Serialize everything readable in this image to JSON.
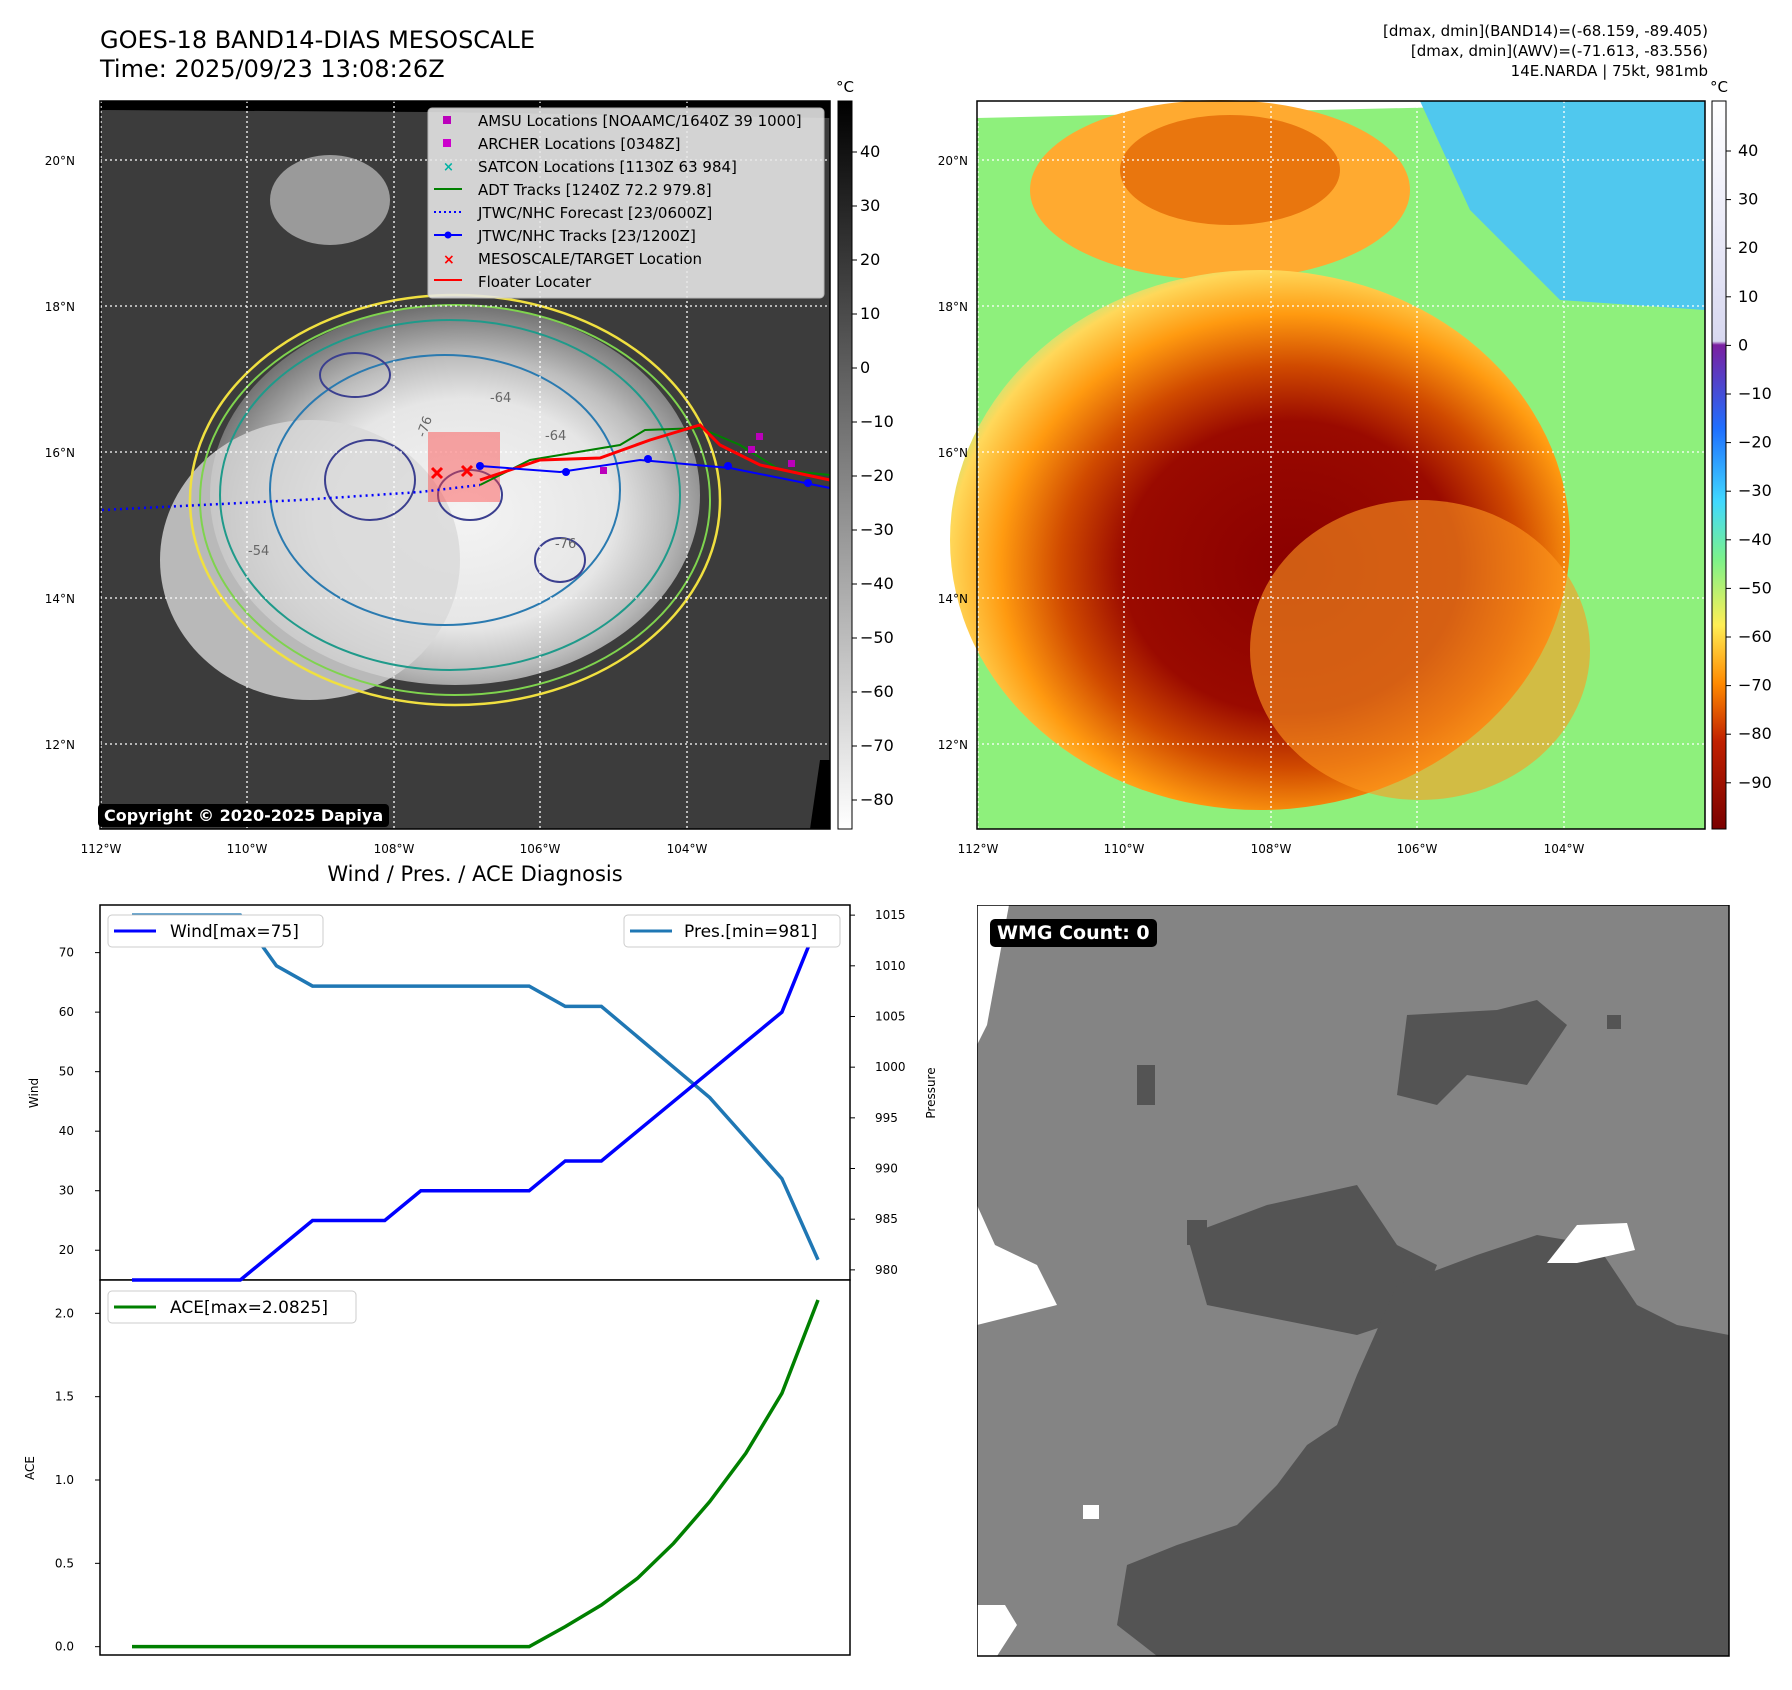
{
  "header": {
    "title_line1": "GOES-18 BAND14-DIAS MESOSCALE",
    "title_line2": "Time: 2025/09/23 13:08:26Z",
    "info_line1": "[dmax, dmin](BAND14)=(-68.159, -89.405)",
    "info_line2": "[dmax, dmin](AWV)=(-71.613, -83.556)",
    "info_line3": "14E.NARDA | 75kt, 981mb"
  },
  "map_axes": {
    "lat_labels": [
      "20°N",
      "18°N",
      "16°N",
      "14°N",
      "12°N"
    ],
    "lon_labels": [
      "112°W",
      "110°W",
      "108°W",
      "106°W",
      "104°W"
    ]
  },
  "colorbar_gray": {
    "unit": "°C",
    "ticks": [
      "40",
      "30",
      "20",
      "10",
      "0",
      "−10",
      "−20",
      "−30",
      "−40",
      "−50",
      "−60",
      "−70",
      "−80"
    ]
  },
  "colorbar_color": {
    "unit": "°C",
    "ticks": [
      "40",
      "30",
      "20",
      "10",
      "0",
      "−10",
      "−20",
      "−30",
      "−40",
      "−50",
      "−60",
      "−70",
      "−80",
      "−90"
    ]
  },
  "legend": {
    "items": [
      {
        "label": "AMSU Locations [NOAAMC/1640Z 39 1000]",
        "color": "#bb00bb",
        "marker": "square"
      },
      {
        "label": "ARCHER Locations [0348Z]",
        "color": "#cc00cc",
        "marker": "square"
      },
      {
        "label": "SATCON Locations [1130Z 63 984]",
        "color": "#00b3a4",
        "marker": "x"
      },
      {
        "label": "ADT Tracks [1240Z 72.2 979.8]",
        "color": "#008000",
        "marker": "line"
      },
      {
        "label": "JTWC/NHC Forecast [23/0600Z]",
        "color": "#0000ff",
        "marker": "dotted"
      },
      {
        "label": "JTWC/NHC Tracks [23/1200Z]",
        "color": "#0000ff",
        "marker": "line-dot"
      },
      {
        "label": "MESOSCALE/TARGET Location",
        "color": "#ff0000",
        "marker": "x"
      },
      {
        "label": "Floater Locater",
        "color": "#ff0000",
        "marker": "line"
      }
    ]
  },
  "contour_labels": [
    "-64",
    "-76",
    "-64",
    "-76",
    "-54"
  ],
  "copyright": "Copyright © 2020-2025 Dapiya",
  "diagnosis_title": "Wind / Pres. / ACE Diagnosis",
  "wmg_label": "WMG Count: 0",
  "chart_data": [
    {
      "type": "line",
      "title": "Wind / Pres. / ACE Diagnosis",
      "ylabel": "Wind",
      "ylabel_right": "Pressure",
      "ylim": [
        15,
        78
      ],
      "ylim_right": [
        979,
        1016
      ],
      "yticks": [
        20,
        30,
        40,
        50,
        60,
        70
      ],
      "yticks_right": [
        980,
        985,
        990,
        995,
        1000,
        1005,
        1010,
        1015
      ],
      "series": [
        {
          "name": "Wind[max=75]",
          "color": "#0000ff",
          "axis": "left",
          "values": [
            15,
            15,
            15,
            15,
            20,
            25,
            25,
            25,
            30,
            30,
            30,
            30,
            35,
            35,
            40,
            45,
            50,
            55,
            60,
            75
          ]
        },
        {
          "name": "Pres.[min=981]",
          "color": "#1f77b4",
          "axis": "right",
          "values": [
            1015,
            1015,
            1015,
            1015,
            1010,
            1008,
            1008,
            1008,
            1008,
            1008,
            1008,
            1008,
            1006,
            1006,
            1003,
            1000,
            997,
            993,
            989,
            981
          ]
        }
      ]
    },
    {
      "type": "line",
      "ylabel": "ACE",
      "ylim": [
        -0.05,
        2.2
      ],
      "yticks": [
        0.0,
        0.5,
        1.0,
        1.5,
        2.0
      ],
      "series": [
        {
          "name": "ACE[max=2.0825]",
          "color": "#008000",
          "values": [
            0,
            0,
            0,
            0,
            0,
            0,
            0,
            0,
            0,
            0,
            0,
            0,
            0.12,
            0.25,
            0.41,
            0.62,
            0.87,
            1.16,
            1.52,
            2.08
          ]
        }
      ]
    }
  ]
}
